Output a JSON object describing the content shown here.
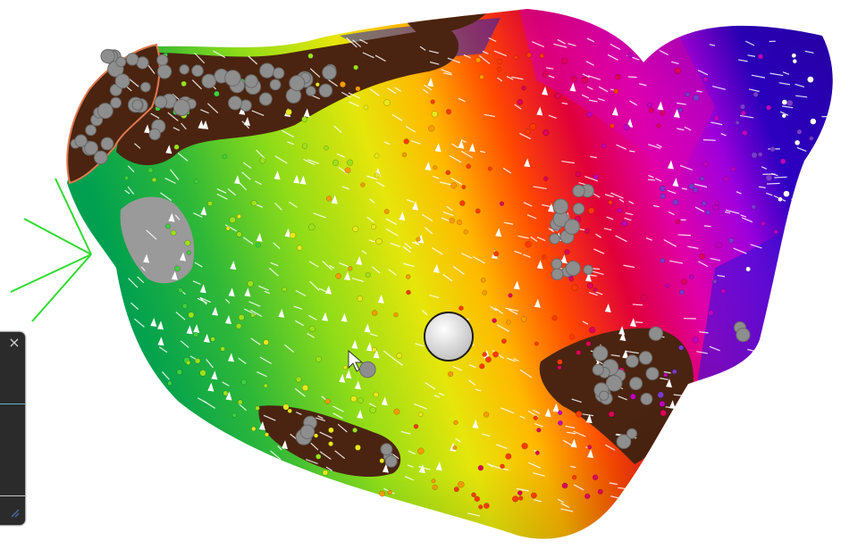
{
  "app": {
    "view": "3d-activation-map"
  },
  "colors": {
    "background": "#ffffff",
    "scar": "#4a2410",
    "ablation_tag": "#9a9a9a",
    "orientation_marker": "#2edb2e",
    "ring_outline": "#e07a50"
  },
  "side_panel": {
    "close_label": "×"
  },
  "icons": {
    "close": "close-icon",
    "cursor": "pointer-cursor-icon",
    "resize": "resize-handle-icon",
    "catheter": "catheter-tip-icon",
    "orientation": "orientation-arrow-icon"
  }
}
